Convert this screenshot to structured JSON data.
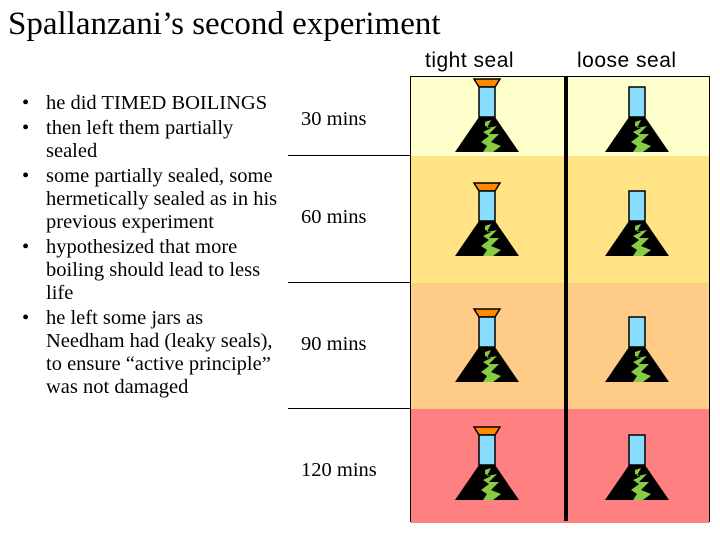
{
  "title": "Spallanzani’s second experiment",
  "bullets": [
    "he did TIMED BOILINGS",
    "then left them partially sealed",
    "some partially sealed, some hermetically sealed as in his previous experiment",
    "hypothesized that more boiling should lead to less life",
    "he left some jars as Needham had (leaky seals), to ensure “active principle” was not damaged"
  ],
  "bullet_glyph": "•",
  "columns": {
    "tight": "tight seal",
    "loose": "loose seal"
  },
  "rows": [
    {
      "time": "30 mins",
      "band_color": "#FFFFCC"
    },
    {
      "time": "60 mins",
      "band_color": "#FFE384"
    },
    {
      "time": "90 mins",
      "band_color": "#FFCC88"
    },
    {
      "time": "120 mins",
      "band_color": "#FF8080"
    }
  ],
  "icons": {
    "tight_flask": "stoppered-flask-icon",
    "loose_flask": "open-flask-icon"
  },
  "colors": {
    "liquid": "#000000",
    "growth": "#88CC44",
    "stopper": "#FF8800",
    "neck": "#88DDFF"
  }
}
